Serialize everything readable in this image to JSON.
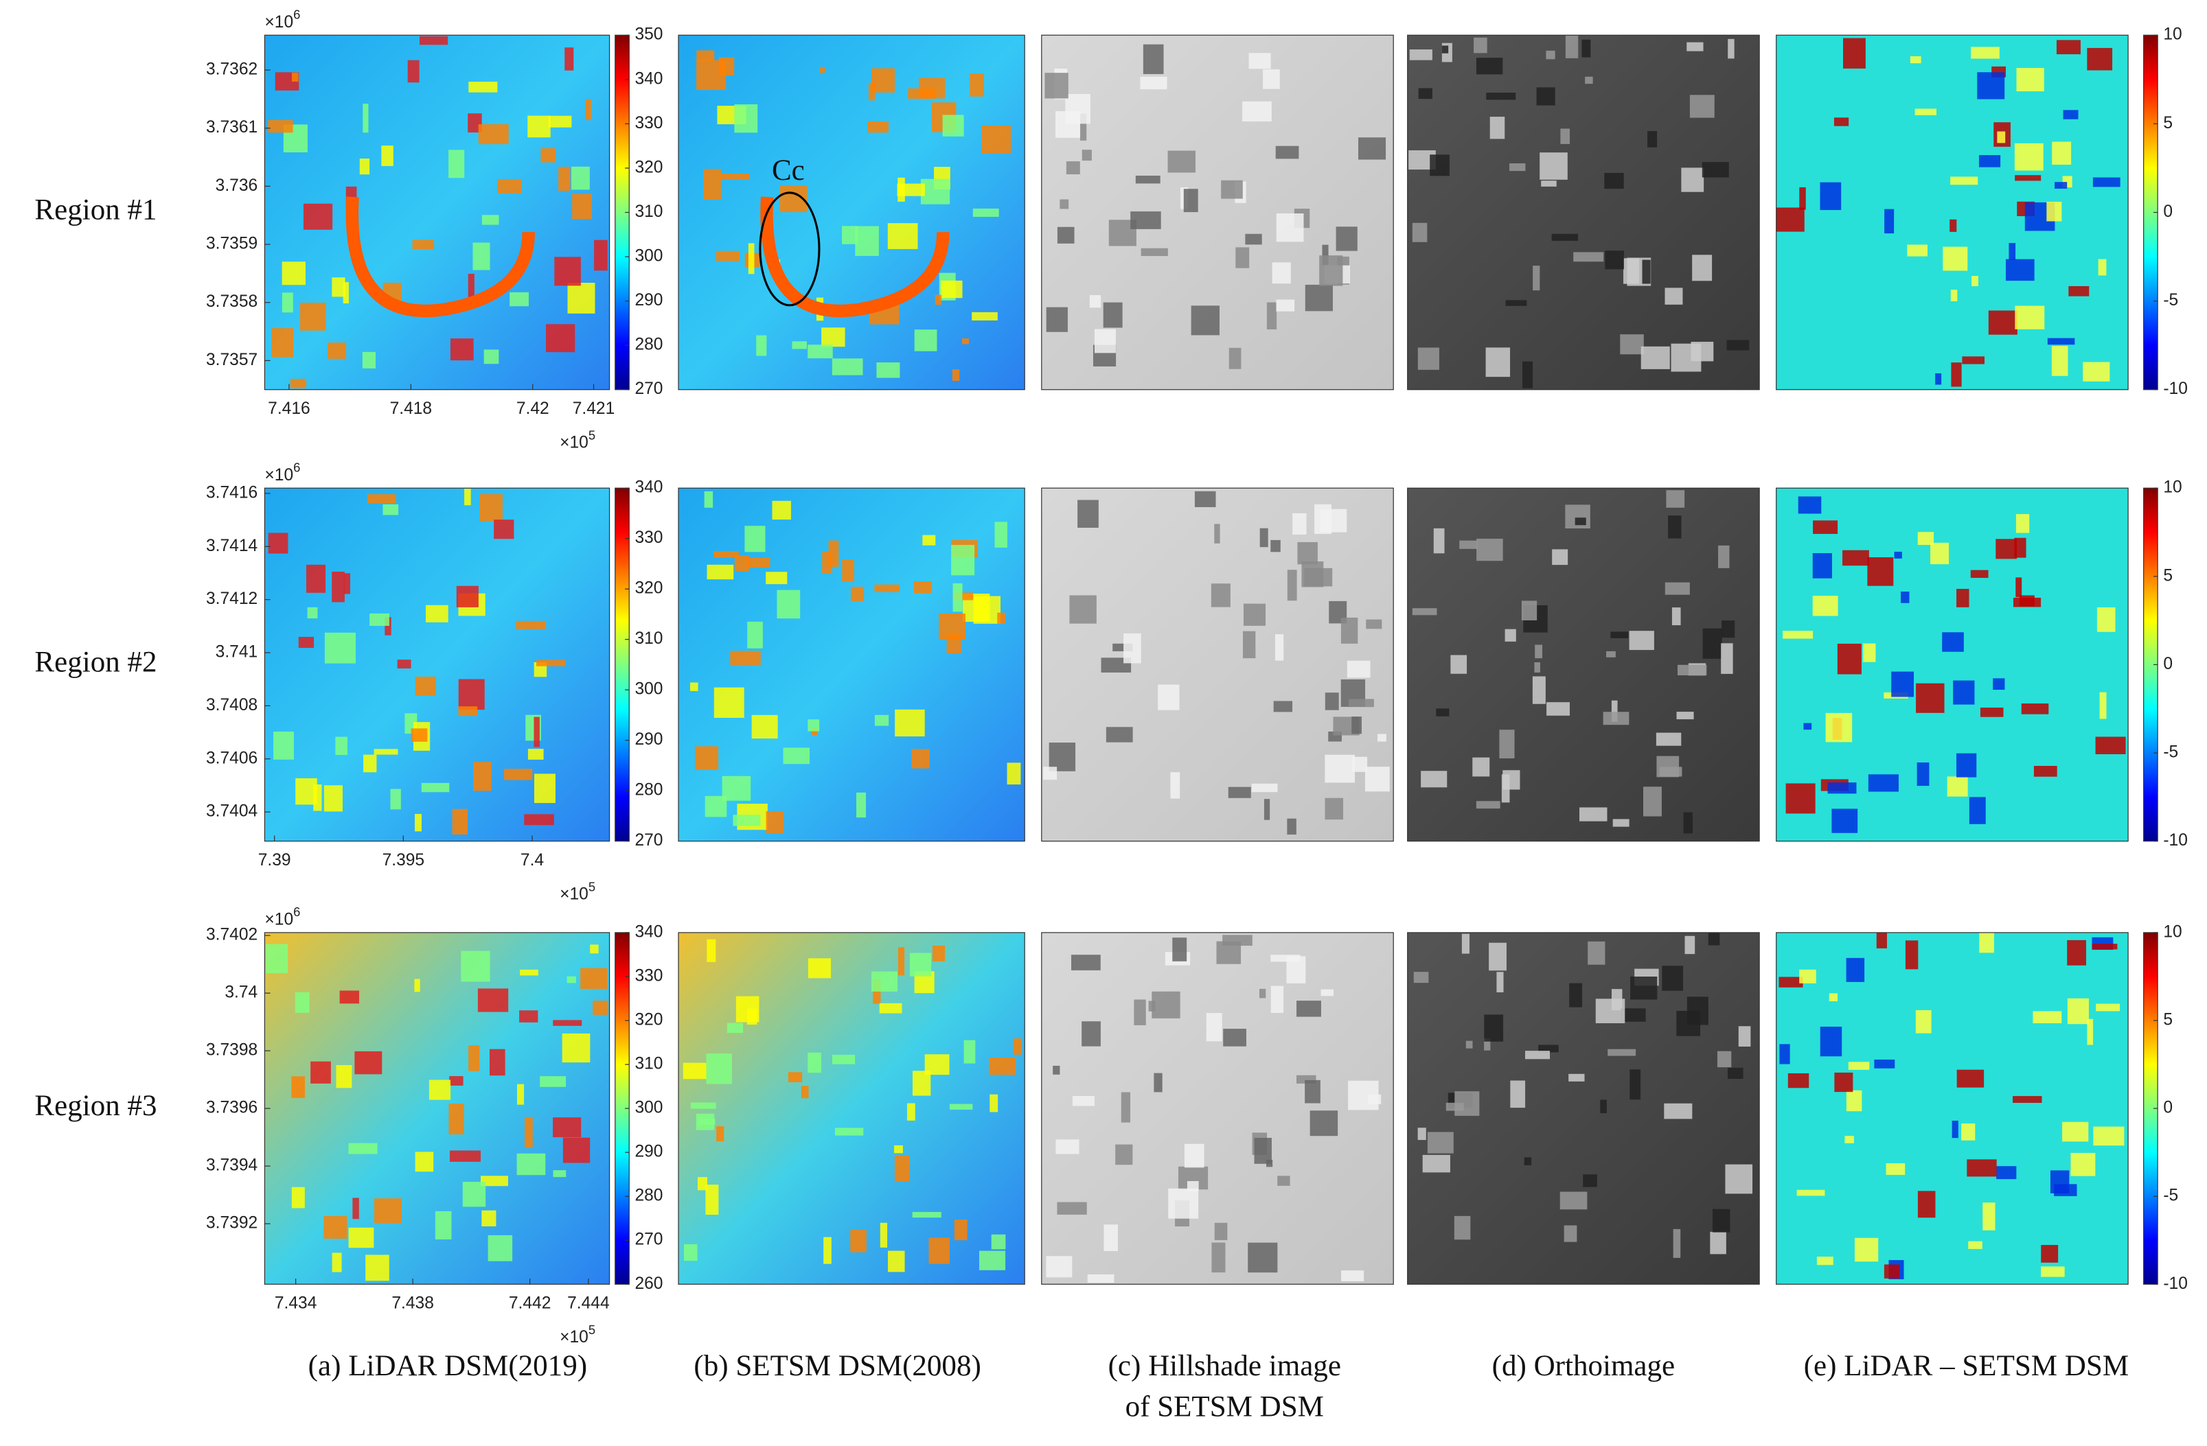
{
  "row_labels": [
    "Region #1",
    "Region #2",
    "Region #3"
  ],
  "captions": [
    [
      "(a) LiDAR DSM(2019)"
    ],
    [
      "(b) SETSM DSM(2008)"
    ],
    [
      "(c) Hillshade image",
      "of SETSM DSM"
    ],
    [
      "(d) Orthoimage"
    ],
    [
      "(e) LiDAR – SETSM DSM"
    ]
  ],
  "annotation": "Cc",
  "regions": [
    {
      "lidar_axes": {
        "xlim": [
          7.4156,
          7.42126
        ],
        "xticks": [
          7.416,
          7.418,
          7.42,
          7.421
        ],
        "ylim": [
          3.73565,
          3.73626
        ],
        "yticks": [
          3.7362,
          3.7361,
          3.736,
          3.7359,
          3.7358,
          3.7357
        ],
        "x_exponent": {
          "base": "×10",
          "exponent": "5"
        },
        "y_exponent": {
          "base": "×10",
          "exponent": "6"
        }
      },
      "elevation_colorbar": {
        "lim": [
          270,
          350
        ],
        "ticks": [
          270,
          280,
          290,
          300,
          310,
          320,
          330,
          340,
          350
        ]
      },
      "difference_colorbar": {
        "lim": [
          -10,
          10
        ],
        "ticks": [
          -10,
          -5,
          0,
          5,
          10
        ]
      }
    },
    {
      "lidar_axes": {
        "xlim": [
          7.38962,
          7.403
        ],
        "xticks": [
          7.39,
          7.395,
          7.4
        ],
        "ylim": [
          3.74029,
          3.74162
        ],
        "yticks": [
          3.7416,
          3.7414,
          3.7412,
          3.741,
          3.7408,
          3.7406,
          3.7404
        ],
        "x_exponent": {
          "base": "×10",
          "exponent": "5"
        },
        "y_exponent": {
          "base": "×10",
          "exponent": "6"
        }
      },
      "elevation_colorbar": {
        "lim": [
          270,
          340
        ],
        "ticks": [
          270,
          280,
          290,
          300,
          310,
          320,
          330,
          340
        ]
      },
      "difference_colorbar": {
        "lim": [
          -10,
          10
        ],
        "ticks": [
          -10,
          -5,
          0,
          5,
          10
        ]
      }
    },
    {
      "lidar_axes": {
        "xlim": [
          7.43294,
          7.44472
        ],
        "xticks": [
          7.434,
          7.438,
          7.442,
          7.444
        ],
        "ylim": [
          3.73899,
          3.74021
        ],
        "yticks": [
          3.7402,
          3.74,
          3.7398,
          3.7396,
          3.7394,
          3.7392
        ],
        "x_exponent": {
          "base": "×10",
          "exponent": "5"
        },
        "y_exponent": {
          "base": "×10",
          "exponent": "6"
        }
      },
      "elevation_colorbar": {
        "lim": [
          260,
          340
        ],
        "ticks": [
          260,
          270,
          280,
          290,
          300,
          310,
          320,
          330,
          340
        ]
      },
      "difference_colorbar": {
        "lim": [
          -10,
          10
        ],
        "ticks": [
          -10,
          -5,
          0,
          5,
          10
        ]
      }
    }
  ]
}
